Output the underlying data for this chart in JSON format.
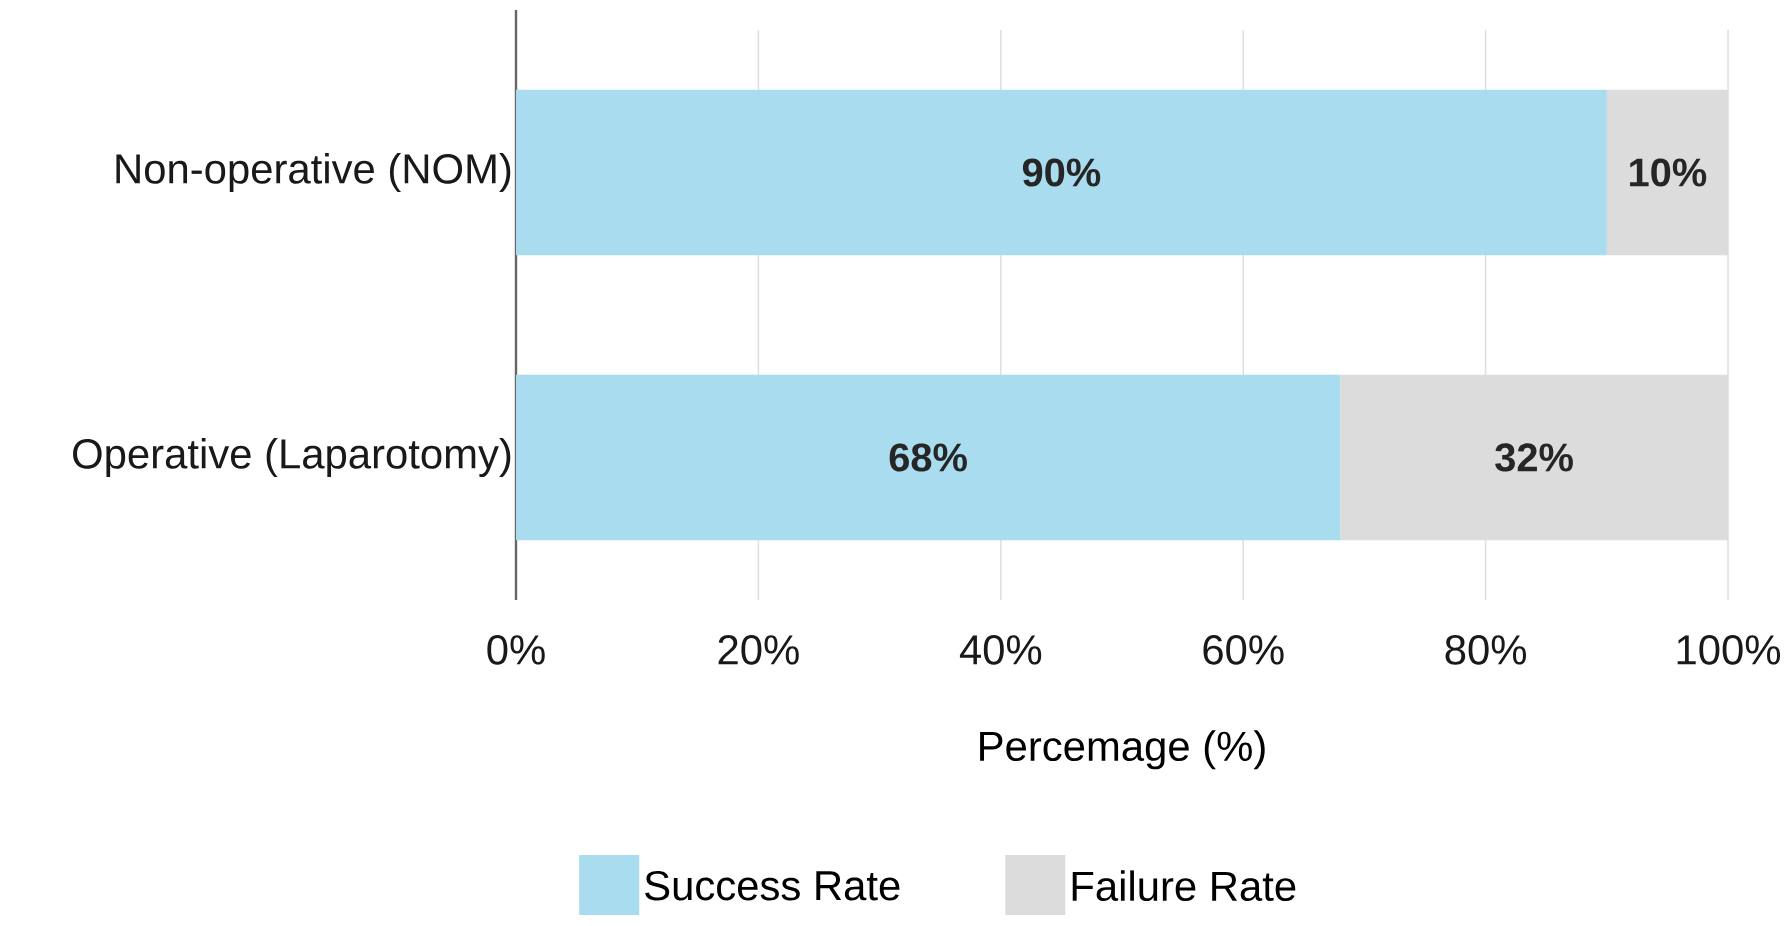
{
  "chart_data": {
    "type": "bar",
    "orientation": "horizontal",
    "stacked": true,
    "categories": [
      "Non-operative (NOM)",
      "Operative (Laparotomy)"
    ],
    "series": [
      {
        "name": "Success Rate",
        "color": "#a8dcee",
        "values": [
          90,
          68
        ],
        "value_labels": [
          "90%",
          "68%"
        ]
      },
      {
        "name": "Failure Rate",
        "color": "#dcdcdc",
        "values": [
          10,
          32
        ],
        "value_labels": [
          "10%",
          "32%"
        ]
      }
    ],
    "xlabel": "Percemage (%)",
    "xlim": [
      0,
      100
    ],
    "xticks": [
      {
        "value": 0,
        "label": "0%"
      },
      {
        "value": 20,
        "label": "20%"
      },
      {
        "value": 40,
        "label": "40%"
      },
      {
        "value": 60,
        "label": "60%"
      },
      {
        "value": 80,
        "label": "80%"
      },
      {
        "value": 100,
        "label": "100%"
      }
    ],
    "grid": "x",
    "legend": "bottom"
  }
}
